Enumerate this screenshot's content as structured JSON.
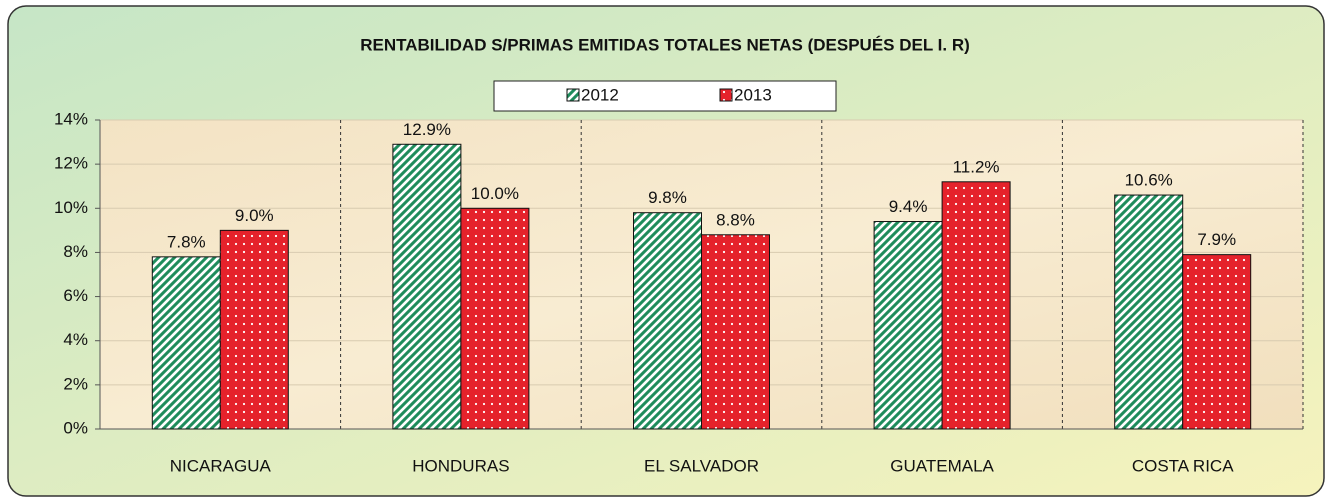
{
  "chart_data": {
    "type": "bar",
    "title": "RENTABILIDAD S/PRIMAS EMITIDAS TOTALES NETAS (DESPUÉS DEL  I. R)",
    "categories": [
      "NICARAGUA",
      "HONDURAS",
      "EL SALVADOR",
      "GUATEMALA",
      "COSTA RICA"
    ],
    "series": [
      {
        "name": "2012",
        "color": "#1f8c5c",
        "values": [
          7.8,
          12.9,
          9.8,
          9.4,
          10.6
        ],
        "value_labels": [
          "7.8%",
          "12.9%",
          "9.8%",
          "9.4%",
          "10.6%"
        ]
      },
      {
        "name": "2013",
        "color": "#e5222b",
        "values": [
          9.0,
          10.0,
          8.8,
          11.2,
          7.9
        ],
        "value_labels": [
          "9.0%",
          "10.0%",
          "8.8%",
          "11.2%",
          "7.9%"
        ]
      }
    ],
    "ylim": [
      0,
      14
    ],
    "yticks": [
      {
        "value": 0,
        "label": "0%"
      },
      {
        "value": 2,
        "label": "2%"
      },
      {
        "value": 4,
        "label": "4%"
      },
      {
        "value": 6,
        "label": "6%"
      },
      {
        "value": 8,
        "label": "8%"
      },
      {
        "value": 10,
        "label": "10%"
      },
      {
        "value": 12,
        "label": "12%"
      },
      {
        "value": 14,
        "label": "14%"
      }
    ],
    "grid": true,
    "legend": "top"
  }
}
